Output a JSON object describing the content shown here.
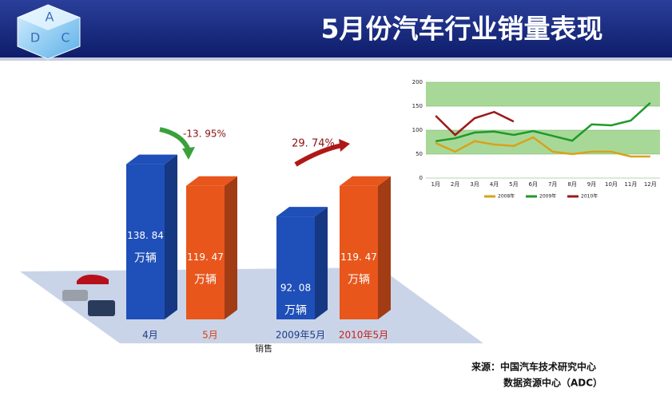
{
  "header": {
    "title": "5月份汽车行业销量表现",
    "logo": [
      "A",
      "D",
      "C"
    ]
  },
  "chart_data": [
    {
      "type": "bar3d",
      "categories": [
        "4月",
        "5月",
        "2009年5月",
        "2010年5月"
      ],
      "values": [
        138.84,
        119.47,
        92.08,
        119.47
      ],
      "value_labels": [
        "138. 84",
        "119. 47",
        "92. 08",
        "119. 47"
      ],
      "unit": "万辆",
      "colors": [
        "#1f4fb8",
        "#e8561c",
        "#1f4fb8",
        "#e8561c"
      ],
      "label_colors": [
        "#1a3a8a",
        "#d8401a",
        "#1a3a8a",
        "#c8201a"
      ],
      "x_label": "销售",
      "annotations": [
        "-13. 95%",
        "29. 74%"
      ]
    },
    {
      "type": "line",
      "categories": [
        "1月",
        "2月",
        "3月",
        "4月",
        "5月",
        "6月",
        "7月",
        "8月",
        "9月",
        "10月",
        "11月",
        "12月"
      ],
      "series": [
        {
          "name": "2008年",
          "color": "#d9a21b",
          "values": [
            73,
            55,
            77,
            70,
            67,
            85,
            55,
            50,
            55,
            55,
            45,
            45
          ]
        },
        {
          "name": "2009年",
          "color": "#1e9a2a",
          "values": [
            77,
            83,
            95,
            97,
            90,
            98,
            88,
            78,
            112,
            110,
            120,
            157
          ]
        },
        {
          "name": "2010年",
          "color": "#9b1a1a",
          "values": [
            130,
            90,
            125,
            138,
            118,
            null,
            null,
            null,
            null,
            null,
            null,
            null
          ]
        }
      ],
      "ylim": [
        0,
        200
      ],
      "yticks": [
        0,
        50,
        100,
        150,
        200
      ],
      "grid": true,
      "legend": "bottom"
    }
  ],
  "source": [
    "来源：中国汽车技术研究中心",
    "数据资源中心（ADC）"
  ]
}
